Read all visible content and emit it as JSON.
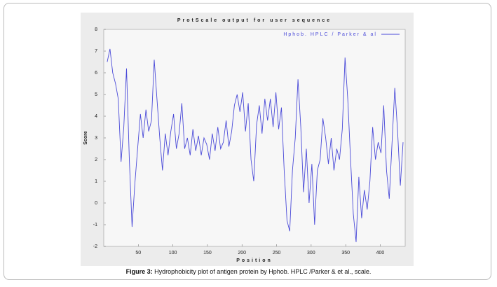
{
  "chart_data": {
    "type": "line",
    "title": "ProtScale output for user sequence",
    "xlabel": "Position",
    "ylabel": "Score",
    "x": [
      5,
      9,
      13,
      17,
      21,
      25,
      29,
      33,
      37,
      41,
      45,
      49,
      53,
      57,
      61,
      65,
      69,
      73,
      77,
      81,
      85,
      89,
      93,
      97,
      101,
      105,
      109,
      113,
      117,
      121,
      125,
      129,
      133,
      137,
      141,
      145,
      149,
      153,
      157,
      161,
      165,
      169,
      173,
      177,
      181,
      185,
      189,
      193,
      197,
      201,
      205,
      209,
      213,
      217,
      221,
      225,
      229,
      233,
      237,
      241,
      245,
      249,
      253,
      257,
      261,
      265,
      269,
      273,
      277,
      281,
      285,
      289,
      293,
      297,
      301,
      305,
      309,
      313,
      317,
      321,
      325,
      329,
      333,
      337,
      341,
      345,
      349,
      353,
      357,
      361,
      365,
      369,
      373,
      377,
      381,
      385,
      389,
      393,
      397,
      401,
      405,
      409,
      413,
      417,
      421,
      425,
      429,
      433
    ],
    "series": [
      {
        "name": "Hphob. HPLC / Parker & al",
        "color": "#4a4ad8",
        "values": [
          6.5,
          7.1,
          6.0,
          5.5,
          4.8,
          1.9,
          3.5,
          6.2,
          2.0,
          -1.1,
          0.9,
          2.5,
          4.1,
          3.0,
          4.3,
          3.3,
          3.8,
          6.6,
          4.8,
          3.0,
          1.5,
          3.2,
          2.2,
          3.3,
          4.1,
          2.5,
          3.2,
          4.6,
          2.5,
          3.0,
          2.2,
          3.4,
          2.4,
          3.1,
          2.2,
          3.0,
          2.7,
          2.0,
          3.2,
          2.4,
          3.5,
          2.5,
          2.8,
          3.8,
          2.6,
          3.3,
          4.5,
          5.0,
          4.2,
          5.1,
          3.3,
          4.6,
          2.0,
          1.0,
          3.6,
          4.5,
          3.2,
          4.8,
          3.8,
          4.8,
          3.5,
          5.1,
          3.4,
          4.4,
          1.5,
          -0.8,
          -1.3,
          1.5,
          3.0,
          5.7,
          3.5,
          0.5,
          2.5,
          0.0,
          1.8,
          -1.0,
          1.5,
          2.0,
          3.9,
          3.0,
          1.8,
          3.0,
          1.5,
          2.5,
          2.0,
          3.4,
          6.7,
          4.8,
          2.0,
          -0.5,
          -1.8,
          1.2,
          -0.7,
          0.6,
          -0.3,
          1.0,
          3.5,
          2.0,
          2.8,
          2.3,
          4.5,
          1.5,
          0.2,
          2.8,
          5.3,
          3.3,
          0.8,
          2.8
        ]
      }
    ],
    "xlim": [
      0,
      436
    ],
    "ylim": [
      -2,
      8
    ],
    "xticks": [
      50,
      100,
      150,
      200,
      250,
      300,
      350,
      400
    ],
    "yticks": [
      -2,
      -1,
      0,
      1,
      2,
      3,
      4,
      5,
      6,
      7,
      8
    ],
    "grid": false,
    "legend": "upper right"
  },
  "caption": {
    "label": "Figure 3:",
    "text": " Hydrophobicity plot of antigen protein by  Hphob. HPLC /Parker & et al., scale."
  }
}
